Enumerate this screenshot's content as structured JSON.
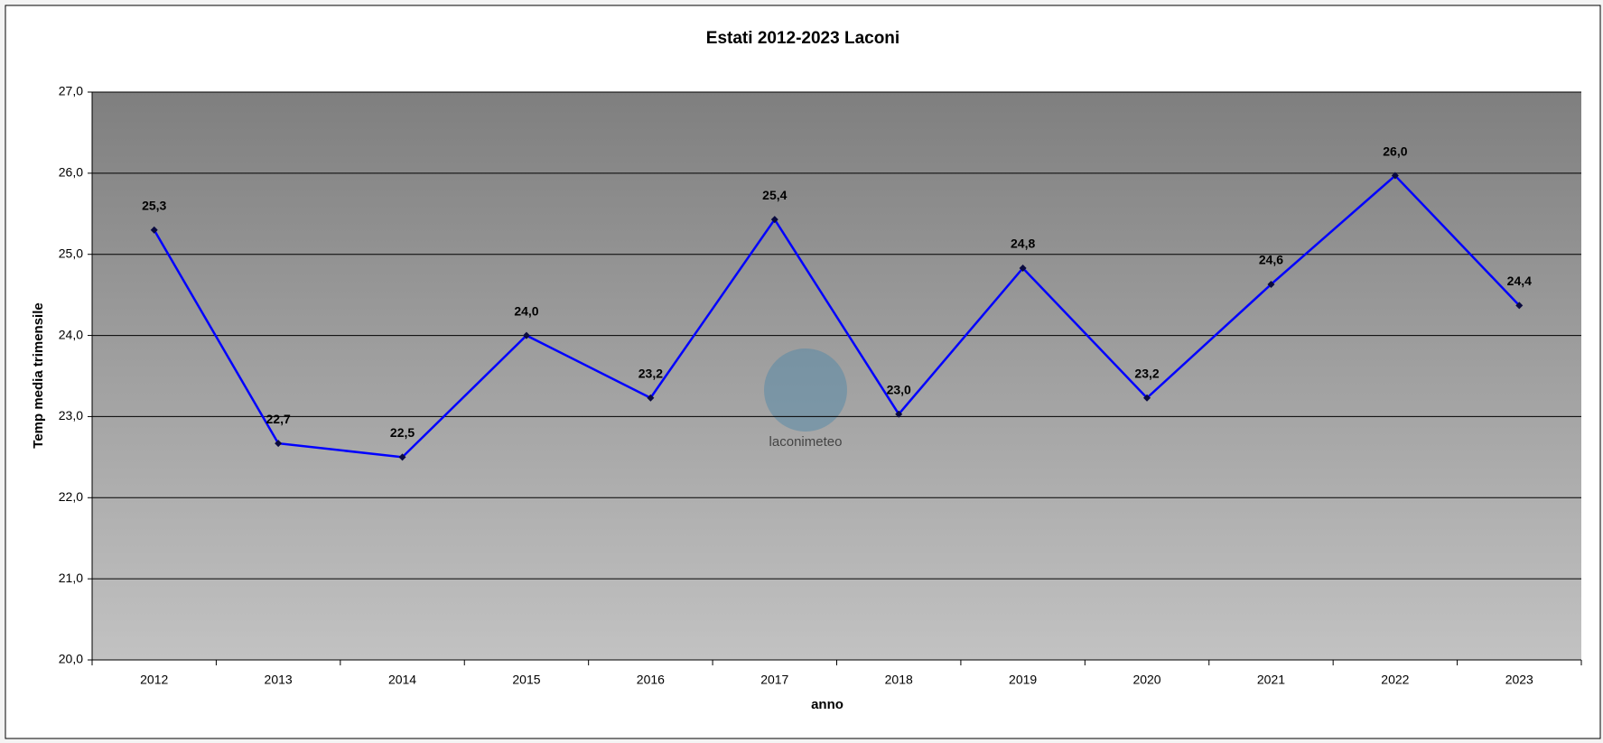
{
  "chart_data": {
    "type": "line",
    "title": "Estati 2012-2023 Laconi",
    "x_label": "anno",
    "y_label": "Temp media trimensile",
    "watermark": "laconimeteo",
    "categories": [
      "2012",
      "2013",
      "2014",
      "2015",
      "2016",
      "2017",
      "2018",
      "2019",
      "2020",
      "2021",
      "2022",
      "2023"
    ],
    "values": [
      25.3,
      22.67,
      22.5,
      24.0,
      23.23,
      25.43,
      23.03,
      24.83,
      23.23,
      24.63,
      25.97,
      24.37
    ],
    "value_labels": [
      "25,3",
      "22,7",
      "22,5",
      "24,0",
      "23,2",
      "25,4",
      "23,0",
      "24,8",
      "23,2",
      "24,6",
      "26,0",
      "24,4"
    ],
    "color": "#0000ff",
    "marker_color": "#0a0a40",
    "label_color": "#ffff00",
    "ylim": [
      20,
      27
    ],
    "yticks": [
      {
        "value": 20,
        "label": "20,0"
      },
      {
        "value": 21,
        "label": "21,0"
      },
      {
        "value": 22,
        "label": "22,0"
      },
      {
        "value": 23,
        "label": "23,0"
      },
      {
        "value": 24,
        "label": "24,0"
      },
      {
        "value": 25,
        "label": "25,0"
      },
      {
        "value": 26,
        "label": "26,0"
      },
      {
        "value": 27,
        "label": "27,0"
      }
    ],
    "grid": true
  }
}
